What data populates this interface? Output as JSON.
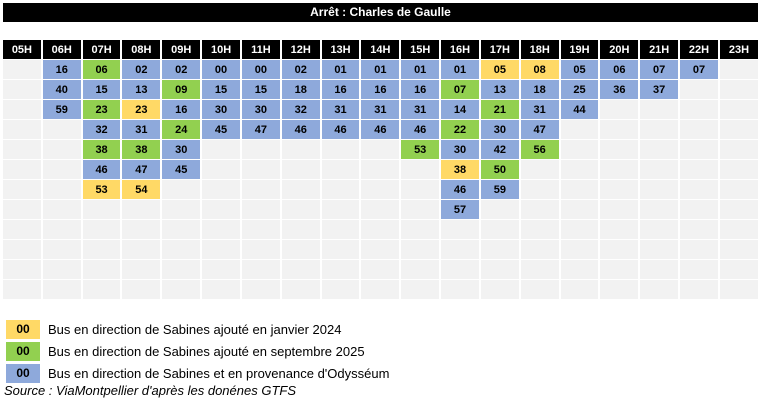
{
  "chart_data": {
    "type": "table",
    "title": "Arrêt : Charles de Gaulle",
    "columns": [
      "05H",
      "06H",
      "07H",
      "08H",
      "09H",
      "10H",
      "11H",
      "12H",
      "13H",
      "14H",
      "15H",
      "16H",
      "17H",
      "18H",
      "19H",
      "20H",
      "21H",
      "22H",
      "23H"
    ],
    "colors": {
      "b": "#8EA9DB",
      "g": "#92D050",
      "y": "#FFD966",
      "empty_cell": "#F2F2F2",
      "header_bg": "#000000",
      "header_text": "#FFFFFF"
    },
    "cell_type_meaning": {
      "b": "Bus en direction de Sabines et en provenance d'Odysséum",
      "g": "Bus en direction de Sabines ajouté en septembre 2025",
      "y": "Bus en direction de Sabines ajouté en janvier 2024"
    },
    "rows": [
      [
        "",
        "16b",
        "06g",
        "02b",
        "02b",
        "00b",
        "00b",
        "02b",
        "01b",
        "01b",
        "01b",
        "01b",
        "05y",
        "08y",
        "05b",
        "06b",
        "07b",
        "07b",
        ""
      ],
      [
        "",
        "40b",
        "15b",
        "13b",
        "09g",
        "15b",
        "15b",
        "18b",
        "16b",
        "16b",
        "16b",
        "07g",
        "13b",
        "18b",
        "25b",
        "36b",
        "37b",
        "",
        ""
      ],
      [
        "",
        "59b",
        "23g",
        "23y",
        "16b",
        "30b",
        "30b",
        "32b",
        "31b",
        "31b",
        "31b",
        "14b",
        "21g",
        "31b",
        "44b",
        "",
        "",
        "",
        ""
      ],
      [
        "",
        "",
        "32b",
        "31b",
        "24g",
        "45b",
        "47b",
        "46b",
        "46b",
        "46b",
        "46b",
        "22g",
        "30b",
        "47b",
        "",
        "",
        "",
        "",
        ""
      ],
      [
        "",
        "",
        "38g",
        "38g",
        "30b",
        "",
        "",
        "",
        "",
        "",
        "53g",
        "30b",
        "42b",
        "56g",
        "",
        "",
        "",
        "",
        ""
      ],
      [
        "",
        "",
        "46b",
        "47b",
        "45b",
        "",
        "",
        "",
        "",
        "",
        "",
        "38y",
        "50g",
        "",
        "",
        "",
        "",
        "",
        ""
      ],
      [
        "",
        "",
        "53y",
        "54y",
        "",
        "",
        "",
        "",
        "",
        "",
        "",
        "46b",
        "59b",
        "",
        "",
        "",
        "",
        "",
        ""
      ],
      [
        "",
        "",
        "",
        "",
        "",
        "",
        "",
        "",
        "",
        "",
        "",
        "57b",
        "",
        "",
        "",
        "",
        "",
        "",
        ""
      ],
      [
        "",
        "",
        "",
        "",
        "",
        "",
        "",
        "",
        "",
        "",
        "",
        "",
        "",
        "",
        "",
        "",
        "",
        "",
        ""
      ],
      [
        "",
        "",
        "",
        "",
        "",
        "",
        "",
        "",
        "",
        "",
        "",
        "",
        "",
        "",
        "",
        "",
        "",
        "",
        ""
      ],
      [
        "",
        "",
        "",
        "",
        "",
        "",
        "",
        "",
        "",
        "",
        "",
        "",
        "",
        "",
        "",
        "",
        "",
        "",
        ""
      ],
      [
        "",
        "",
        "",
        "",
        "",
        "",
        "",
        "",
        "",
        "",
        "",
        "",
        "",
        "",
        "",
        "",
        "",
        "",
        ""
      ]
    ],
    "legend": [
      {
        "swatch_label": "00",
        "type": "y",
        "label": "Bus en direction de Sabines ajouté en janvier 2024"
      },
      {
        "swatch_label": "00",
        "type": "g",
        "label": "Bus en direction de Sabines ajouté en septembre 2025"
      },
      {
        "swatch_label": "00",
        "type": "b",
        "label": "Bus en direction de Sabines et en provenance d'Odysséum"
      }
    ],
    "source": "Source : ViaMontpellier d'après les donénes GTFS"
  }
}
